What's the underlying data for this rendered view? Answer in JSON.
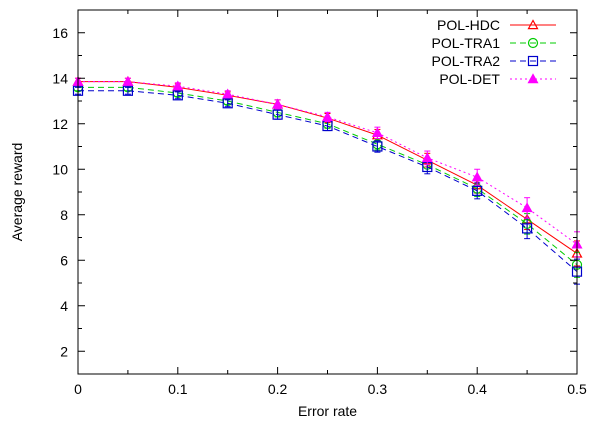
{
  "chart_data": {
    "type": "line",
    "xlabel": "Error rate",
    "ylabel": "Average reward",
    "xlim": [
      0,
      0.5
    ],
    "ylim": [
      1,
      17
    ],
    "x_ticks": [
      0,
      0.1,
      0.2,
      0.3,
      0.4,
      0.5
    ],
    "x_tick_labels": [
      "0",
      "0.1",
      "0.2",
      "0.3",
      "0.4",
      "0.5"
    ],
    "y_ticks": [
      2,
      4,
      6,
      8,
      10,
      12,
      14,
      16
    ],
    "y_tick_labels": [
      "2",
      "4",
      "6",
      "8",
      "10",
      "12",
      "14",
      "16"
    ],
    "x": [
      0,
      0.05,
      0.1,
      0.15,
      0.2,
      0.25,
      0.3,
      0.35,
      0.4,
      0.45,
      0.5
    ],
    "legend_position": "top-right",
    "grid": false,
    "series": [
      {
        "name": "POL-HDC",
        "color": "#ff0000",
        "marker": "triangle-open",
        "dash": "solid",
        "values": [
          13.85,
          13.85,
          13.6,
          13.25,
          12.85,
          12.25,
          11.5,
          10.4,
          9.3,
          7.8,
          6.3
        ],
        "errors": [
          0.15,
          0.15,
          0.15,
          0.15,
          0.2,
          0.2,
          0.25,
          0.3,
          0.35,
          0.45,
          0.55
        ]
      },
      {
        "name": "POL-TRA1",
        "color": "#00cc00",
        "marker": "circle-open",
        "dash": "dashed",
        "values": [
          13.6,
          13.6,
          13.35,
          13.0,
          12.5,
          12.0,
          11.1,
          10.2,
          9.15,
          7.6,
          5.8
        ],
        "errors": [
          0.15,
          0.15,
          0.15,
          0.15,
          0.2,
          0.2,
          0.25,
          0.3,
          0.35,
          0.45,
          0.55
        ]
      },
      {
        "name": "POL-TRA2",
        "color": "#0000cc",
        "marker": "square-open",
        "dash": "dashed",
        "values": [
          13.45,
          13.45,
          13.25,
          12.9,
          12.4,
          11.9,
          11.0,
          10.1,
          9.05,
          7.4,
          5.5
        ],
        "errors": [
          0.15,
          0.15,
          0.15,
          0.15,
          0.2,
          0.2,
          0.25,
          0.3,
          0.35,
          0.45,
          0.55
        ]
      },
      {
        "name": "POL-DET",
        "color": "#ff00ff",
        "marker": "triangle-filled",
        "dash": "dotted",
        "values": [
          13.85,
          13.85,
          13.65,
          13.3,
          12.85,
          12.3,
          11.6,
          10.5,
          9.65,
          8.3,
          6.7
        ],
        "errors": [
          0.15,
          0.15,
          0.15,
          0.15,
          0.2,
          0.2,
          0.25,
          0.3,
          0.35,
          0.45,
          0.55
        ]
      }
    ]
  }
}
